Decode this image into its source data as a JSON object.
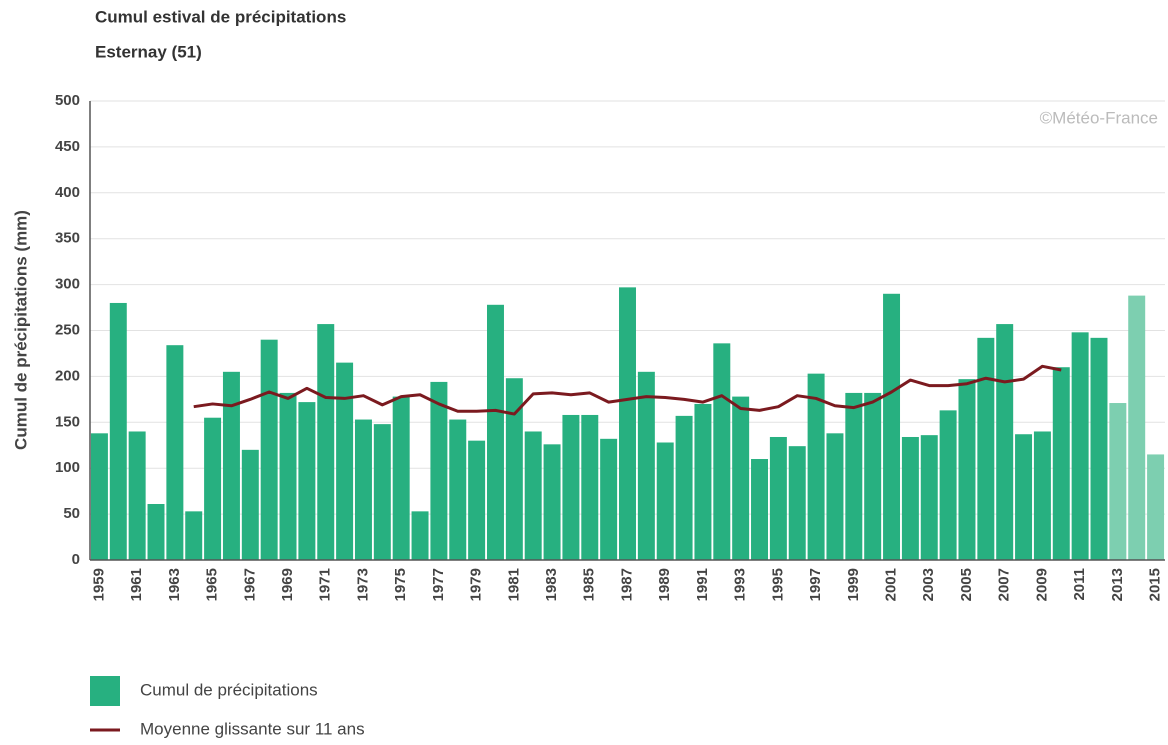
{
  "chart_data": {
    "type": "bar",
    "title": "Cumul estival de précipitations",
    "subtitle": "Esternay (51)",
    "ylabel": "Cumul de précipitations (mm)",
    "watermark": "©Météo-France",
    "categories": [
      "1959",
      null,
      "1961",
      null,
      "1963",
      null,
      "1965",
      null,
      "1967",
      null,
      "1969",
      null,
      "1971",
      null,
      "1973",
      null,
      "1975",
      null,
      "1977",
      null,
      "1979",
      null,
      "1981",
      null,
      "1983",
      null,
      "1985",
      null,
      "1987",
      null,
      "1989",
      null,
      "1991",
      null,
      "1993",
      null,
      "1995",
      null,
      "1997",
      null,
      "1999",
      null,
      "2001",
      null,
      "2003",
      null,
      "2005",
      null,
      "2007",
      null,
      "2009",
      null,
      "2011",
      null,
      "2013",
      null,
      "2015"
    ],
    "ylim": [
      0,
      500
    ],
    "yticks": [
      0,
      50,
      100,
      150,
      200,
      250,
      300,
      350,
      400,
      450,
      500
    ],
    "grid": true,
    "series": [
      {
        "name": "Cumul de précipitations",
        "type": "bar",
        "color": "#27b080",
        "colors": [
          "#27b080",
          "#27b080",
          "#27b080",
          "#27b080",
          "#27b080",
          "#27b080",
          "#27b080",
          "#27b080",
          "#27b080",
          "#27b080",
          "#27b080",
          "#27b080",
          "#27b080",
          "#27b080",
          "#27b080",
          "#27b080",
          "#27b080",
          "#27b080",
          "#27b080",
          "#27b080",
          "#27b080",
          "#27b080",
          "#27b080",
          "#27b080",
          "#27b080",
          "#27b080",
          "#27b080",
          "#27b080",
          "#27b080",
          "#27b080",
          "#27b080",
          "#27b080",
          "#27b080",
          "#27b080",
          "#27b080",
          "#27b080",
          "#27b080",
          "#27b080",
          "#27b080",
          "#27b080",
          "#27b080",
          "#27b080",
          "#27b080",
          "#27b080",
          "#27b080",
          "#27b080",
          "#27b080",
          "#27b080",
          "#27b080",
          "#27b080",
          "#27b080",
          "#27b080",
          "#27b080",
          "#27b080",
          "#7dcfb0",
          "#7dcfb0",
          "#7dcfb0"
        ],
        "values": [
          138,
          280,
          140,
          61,
          234,
          53,
          155,
          205,
          120,
          240,
          182,
          172,
          257,
          215,
          153,
          148,
          178,
          53,
          194,
          153,
          130,
          278,
          198,
          140,
          126,
          158,
          158,
          132,
          297,
          205,
          128,
          157,
          170,
          236,
          178,
          110,
          134,
          124,
          203,
          138,
          182,
          182,
          290,
          134,
          136,
          163,
          197,
          242,
          257,
          137,
          140,
          210,
          248,
          242,
          171,
          288,
          115
        ]
      },
      {
        "name": "Moyenne glissante sur 11 ans",
        "type": "line",
        "color": "#7b1a1f",
        "values": [
          null,
          null,
          null,
          null,
          null,
          167,
          170,
          168,
          175,
          183,
          176,
          187,
          177,
          176,
          179,
          169,
          178,
          180,
          170,
          162,
          162,
          163,
          159,
          181,
          182,
          180,
          182,
          172,
          175,
          178,
          177,
          175,
          172,
          179,
          165,
          163,
          167,
          179,
          176,
          168,
          166,
          172,
          183,
          196,
          190,
          190,
          192,
          198,
          194,
          197,
          211,
          207,
          null,
          null,
          null,
          null,
          null
        ]
      }
    ]
  }
}
